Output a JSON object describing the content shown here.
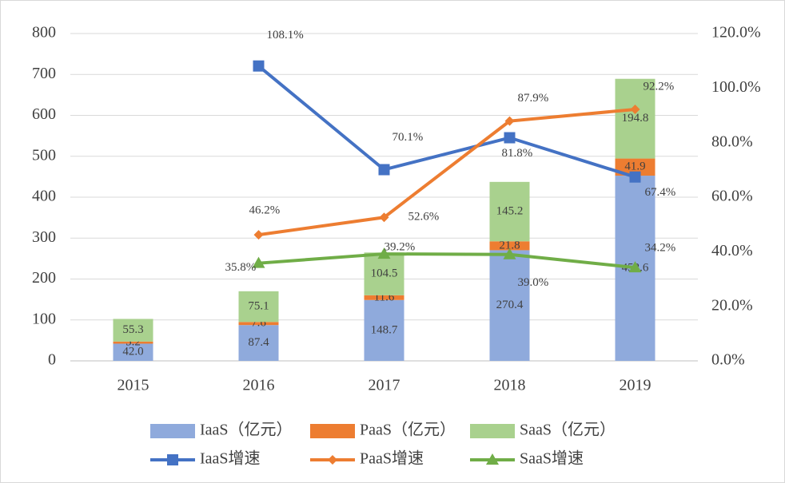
{
  "chart_data": {
    "type": "bar",
    "categories": [
      "2015",
      "2016",
      "2017",
      "2018",
      "2019"
    ],
    "ylim": [
      0,
      800
    ],
    "yticks": [
      0,
      100,
      200,
      300,
      400,
      500,
      600,
      700,
      800
    ],
    "y2lim": [
      0,
      120
    ],
    "y2ticks": [
      {
        "value": 0,
        "label": "0.0%"
      },
      {
        "value": 20,
        "label": "20.0%"
      },
      {
        "value": 40,
        "label": "40.0%"
      },
      {
        "value": 60,
        "label": "60.0%"
      },
      {
        "value": 80,
        "label": "80.0%"
      },
      {
        "value": 100,
        "label": "100.0%"
      },
      {
        "value": 120,
        "label": "120.0%"
      }
    ],
    "grid": true,
    "stacked": true,
    "legend": "bottom",
    "series": [
      {
        "name": "IaaS（亿元）",
        "type": "bar",
        "color": "#8faadc",
        "values": [
          42.0,
          87.4,
          148.7,
          270.4,
          452.6
        ],
        "value_labels": [
          "42.0",
          "87.4",
          "148.7",
          "270.4",
          "452.6"
        ]
      },
      {
        "name": "PaaS（亿元）",
        "type": "bar",
        "color": "#ed7d31",
        "values": [
          5.2,
          7.6,
          11.6,
          21.8,
          41.9
        ],
        "value_labels": [
          "5.2",
          "7.6",
          "11.6",
          "21.8",
          "41.9"
        ]
      },
      {
        "name": "SaaS（亿元）",
        "type": "bar",
        "color": "#a9d18e",
        "values": [
          55.3,
          75.1,
          104.5,
          145.2,
          194.8
        ],
        "value_labels": [
          "55.3",
          "75.1",
          "104.5",
          "145.2",
          "194.8"
        ]
      },
      {
        "name": "IaaS增速",
        "type": "line",
        "axis": "y2",
        "color": "#4472c4",
        "marker": "square",
        "values": [
          null,
          108.1,
          70.1,
          81.8,
          67.4
        ],
        "value_labels": [
          null,
          "108.1%",
          "70.1%",
          "81.8%",
          "67.4%"
        ]
      },
      {
        "name": "PaaS增速",
        "type": "line",
        "axis": "y2",
        "color": "#ed7d31",
        "marker": "diamond",
        "values": [
          null,
          46.2,
          52.6,
          87.9,
          92.2
        ],
        "value_labels": [
          null,
          "46.2%",
          "52.6%",
          "87.9%",
          "92.2%"
        ]
      },
      {
        "name": "SaaS增速",
        "type": "line",
        "axis": "y2",
        "color": "#70ad47",
        "marker": "triangle",
        "values": [
          null,
          35.8,
          39.2,
          39.0,
          34.2
        ],
        "value_labels": [
          null,
          "35.8%",
          "39.2%",
          "39.0%",
          "34.2%"
        ]
      }
    ]
  }
}
